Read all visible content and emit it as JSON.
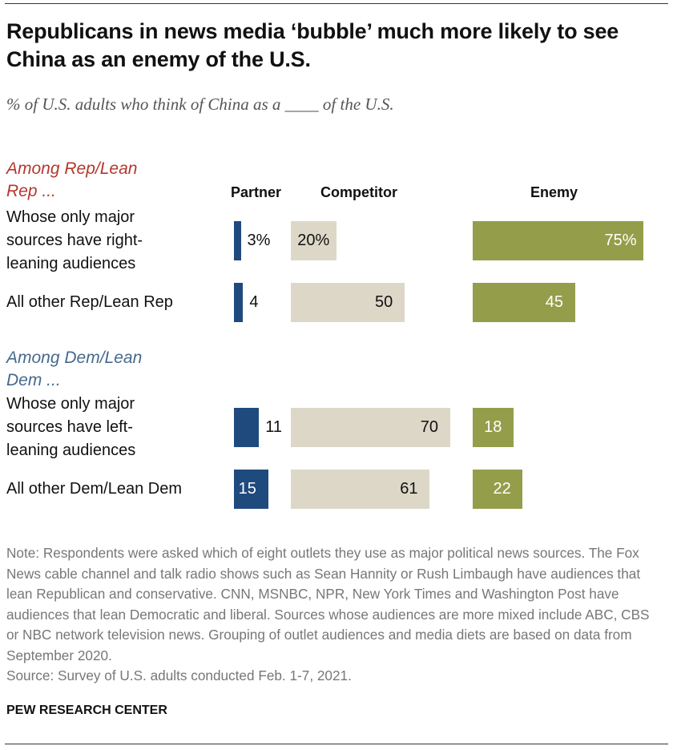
{
  "title": "Republicans in news media ‘bubble’ much more likely to see China as an enemy of the U.S.",
  "subtitle": "% of U.S. adults who think of China as a ____ of the U.S.",
  "chart_data": {
    "type": "bar",
    "orientation": "horizontal-stacked-columns",
    "series": [
      {
        "name": "Partner",
        "color": "#1f4a7e",
        "values": [
          3,
          4,
          11,
          15
        ]
      },
      {
        "name": "Competitor",
        "color": "#dcd7c7",
        "values": [
          20,
          50,
          70,
          61
        ]
      },
      {
        "name": "Enemy",
        "color": "#949e4a",
        "values": [
          75,
          45,
          18,
          22
        ]
      }
    ],
    "groups": [
      {
        "label": "Among Rep/Lean Rep ...",
        "color": "#b5372d"
      },
      {
        "label": "Among Dem/Lean Dem ...",
        "color": "#46698c"
      }
    ],
    "categories": [
      "Whose only major sources have right-leaning audiences",
      "All other Rep/Lean Rep",
      "Whose only major sources have left-leaning audiences",
      "All other Dem/Lean Dem"
    ],
    "value_labels": [
      [
        "3%",
        "20%",
        "75%"
      ],
      [
        "4",
        "50",
        "45"
      ],
      [
        "11",
        "70",
        "18"
      ],
      [
        "15",
        "61",
        "22"
      ]
    ],
    "unit": "%"
  },
  "note": "Note: Respondents were asked which of eight outlets they use as major political news sources. The Fox News cable channel and talk radio shows such as Sean Hannity or Rush Limbaugh have audiences that lean Republican and conservative. CNN, MSNBC, NPR, New York Times and Washington Post have audiences that lean Democratic and liberal. Sources whose audiences are more mixed include ABC, CBS or NBC network television news. Grouping of outlet audiences and media diets are based on data from September 2020.",
  "source": "Source: Survey of U.S. adults conducted Feb. 1-7, 2021.",
  "brand": "PEW RESEARCH CENTER"
}
